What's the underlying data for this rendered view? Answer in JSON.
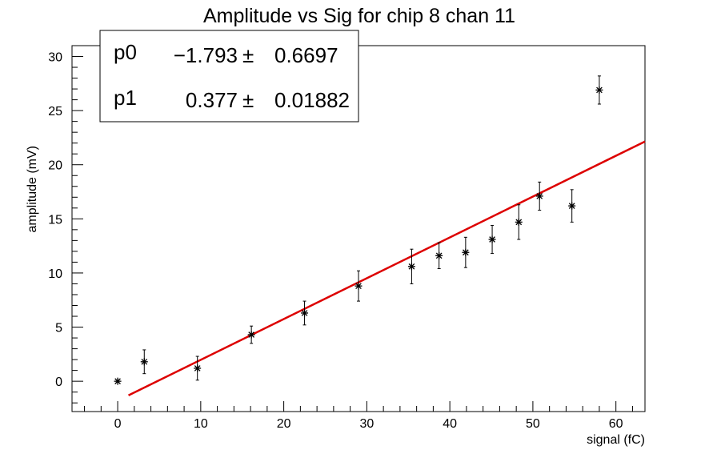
{
  "chart_data": {
    "type": "scatter",
    "title": "Amplitude vs Sig for chip 8 chan 11",
    "xlabel": "signal (fC)",
    "ylabel": "amplitude (mV)",
    "xlim": [
      -5.5,
      63.5
    ],
    "ylim": [
      -2.8,
      31
    ],
    "x_ticks": [
      0,
      10,
      20,
      30,
      40,
      50,
      60
    ],
    "y_ticks": [
      0,
      5,
      10,
      15,
      20,
      25,
      30
    ],
    "grid": false,
    "legend": "none",
    "series": [
      {
        "points": [
          {
            "x": 0.0,
            "y": 0.0,
            "err": 0.0
          },
          {
            "x": 3.2,
            "y": 1.8,
            "err": 1.1
          },
          {
            "x": 9.6,
            "y": 1.2,
            "err": 1.1
          },
          {
            "x": 16.1,
            "y": 4.3,
            "err": 0.8
          },
          {
            "x": 22.5,
            "y": 6.3,
            "err": 1.1
          },
          {
            "x": 29.0,
            "y": 8.8,
            "err": 1.4
          },
          {
            "x": 35.4,
            "y": 10.6,
            "err": 1.6
          },
          {
            "x": 38.7,
            "y": 11.6,
            "err": 1.2
          },
          {
            "x": 41.9,
            "y": 11.9,
            "err": 1.4
          },
          {
            "x": 45.1,
            "y": 13.1,
            "err": 1.3
          },
          {
            "x": 48.3,
            "y": 14.7,
            "err": 1.6
          },
          {
            "x": 50.8,
            "y": 17.1,
            "err": 1.3
          },
          {
            "x": 54.7,
            "y": 16.2,
            "err": 1.5
          },
          {
            "x": 58.0,
            "y": 26.9,
            "err": 1.3
          }
        ],
        "color": "#000000"
      }
    ],
    "fit": {
      "p0": -1.793,
      "p1": 0.377,
      "x_range": [
        1.3,
        63.5
      ],
      "color": "#dd0000"
    },
    "stats_box": {
      "rows": [
        {
          "name": "p0",
          "value": "−1.793",
          "pm": "±",
          "error": "0.6697"
        },
        {
          "name": "p1",
          "value": "0.377",
          "pm": "±",
          "error": "0.01882"
        }
      ]
    }
  }
}
